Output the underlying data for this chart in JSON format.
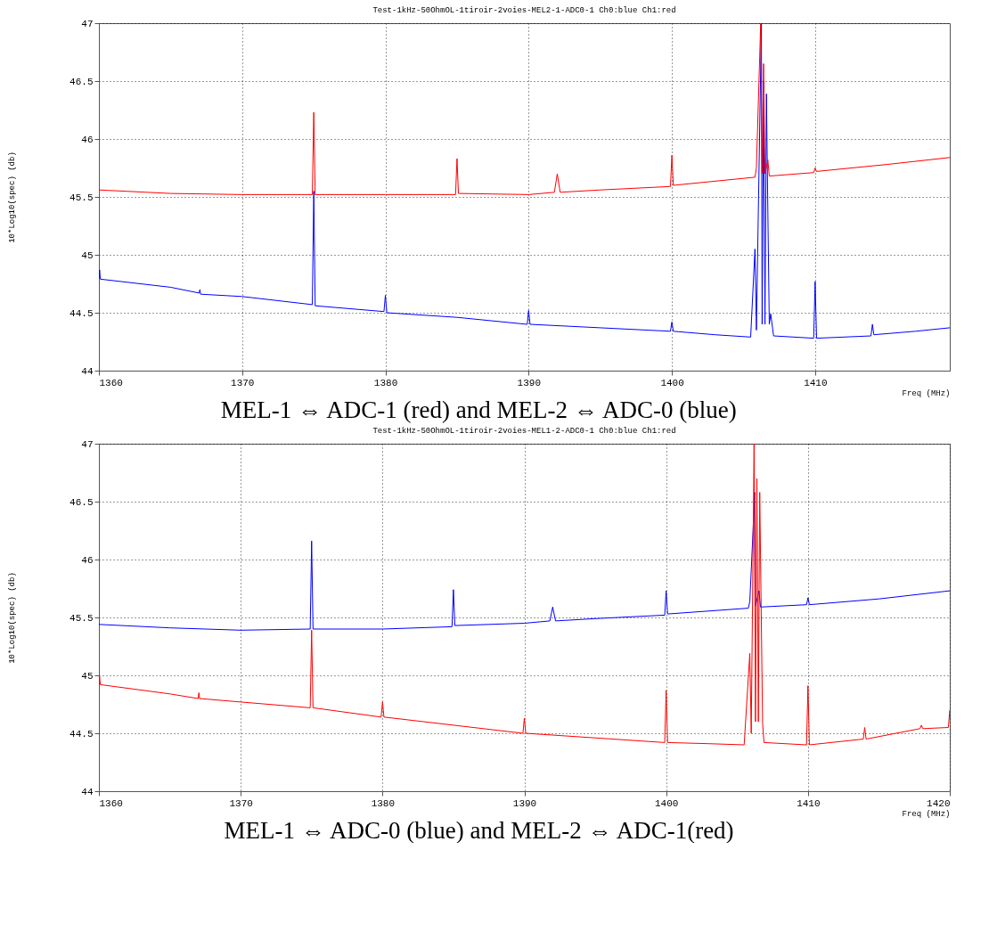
{
  "chart_data": [
    {
      "type": "line",
      "title": "Test-1kHz-50OhmOL-1tiroir-2voies-MEL2-1-ADC0-1  Ch0:blue Ch1:red",
      "xlabel": "Freq (MHz)",
      "ylabel": "10*Log10(spec) (db)",
      "annotations": [
        "MEL-1 ⇔ ADC-1 (red) and MEL-2 ⇔ ADC-0 (blue)"
      ],
      "xlim": [
        1360,
        1419.4
      ],
      "xticks": [
        1360,
        1370,
        1380,
        1390,
        1400,
        1410
      ],
      "ylim": [
        44,
        47
      ],
      "yticks": [
        44,
        44.5,
        45,
        45.5,
        46,
        46.5,
        47
      ],
      "grid": true,
      "line_style": "solid",
      "series": [
        {
          "color": "#0000ff",
          "x": [
            1360,
            1360.05,
            1360.1,
            1365,
            1367,
            1367.05,
            1367.1,
            1370,
            1374.9,
            1375,
            1375.1,
            1379.9,
            1380,
            1380.1,
            1385,
            1389.9,
            1390,
            1390.1,
            1395,
            1399.9,
            1400,
            1400.1,
            1403,
            1405.5,
            1405.8,
            1405.9,
            1406.25,
            1406.3,
            1406.4,
            1406.5,
            1406.6,
            1406.7,
            1406.8,
            1406.9,
            1407.1,
            1409.9,
            1410,
            1410.1,
            1413.9,
            1414,
            1414.1,
            1417,
            1419.4
          ],
          "values": [
            44.8,
            44.87,
            44.79,
            44.72,
            44.67,
            44.7,
            44.66,
            44.64,
            44.57,
            45.55,
            44.56,
            44.51,
            44.65,
            44.5,
            44.46,
            44.4,
            44.52,
            44.4,
            44.37,
            44.34,
            44.42,
            44.34,
            44.31,
            44.29,
            45.05,
            44.35,
            47.0,
            44.4,
            46.5,
            44.4,
            46.39,
            45.37,
            44.4,
            44.49,
            44.3,
            44.28,
            44.77,
            44.28,
            44.3,
            44.4,
            44.31,
            44.34,
            44.37
          ]
        },
        {
          "color": "#ff0000",
          "x": [
            1360,
            1365,
            1370,
            1374.9,
            1375,
            1375.1,
            1380,
            1384.9,
            1385,
            1385.1,
            1390,
            1391.8,
            1392,
            1392.2,
            1395,
            1399.9,
            1400,
            1400.1,
            1405.8,
            1405.9,
            1406.2,
            1406.3,
            1406.4,
            1406.5,
            1406.7,
            1406.8,
            1409.9,
            1410,
            1410.1,
            1415,
            1419.4
          ],
          "values": [
            45.56,
            45.53,
            45.52,
            45.52,
            46.23,
            45.52,
            45.52,
            45.52,
            45.83,
            45.53,
            45.52,
            45.54,
            45.7,
            45.54,
            45.56,
            45.59,
            45.86,
            45.6,
            45.67,
            45.75,
            47.0,
            45.7,
            46.65,
            45.7,
            45.82,
            45.68,
            45.71,
            45.75,
            45.72,
            45.78,
            45.84
          ]
        }
      ]
    },
    {
      "type": "line",
      "title": "Test-1kHz-50OhmOL-1tiroir-2voies-MEL1-2-ADC0-1  Ch0:blue Ch1:red",
      "xlabel": "Freq (MHz)",
      "ylabel": "10*Log10(spec) (db)",
      "annotations": [
        "MEL-1 ⇔ ADC-0 (blue) and MEL-2 ⇔ ADC-1(red)"
      ],
      "xlim": [
        1360,
        1420
      ],
      "xticks": [
        1360,
        1370,
        1380,
        1390,
        1400,
        1410,
        1420
      ],
      "ylim": [
        44,
        47
      ],
      "yticks": [
        44,
        44.5,
        45,
        45.5,
        46,
        46.5,
        47
      ],
      "grid": true,
      "line_style": "solid",
      "series": [
        {
          "color": "#0000ff",
          "x": [
            1360,
            1365,
            1370,
            1374.9,
            1375,
            1375.1,
            1380,
            1384.9,
            1385,
            1385.1,
            1390,
            1391.8,
            1392,
            1392.2,
            1395,
            1399.9,
            1400,
            1400.1,
            1405.8,
            1405.9,
            1406.25,
            1406.3,
            1406.55,
            1406.65,
            1409.9,
            1410,
            1410.1,
            1415,
            1420
          ],
          "values": [
            45.44,
            45.41,
            45.39,
            45.4,
            46.16,
            45.4,
            45.4,
            45.42,
            45.74,
            45.43,
            45.45,
            45.47,
            45.59,
            45.47,
            45.49,
            45.52,
            45.73,
            45.53,
            45.58,
            45.64,
            46.58,
            45.6,
            45.73,
            45.59,
            45.61,
            45.67,
            45.61,
            45.66,
            45.73
          ]
        },
        {
          "color": "#ff0000",
          "x": [
            1360,
            1360.05,
            1360.1,
            1365,
            1367,
            1367.05,
            1367.1,
            1370,
            1374.9,
            1375,
            1375.1,
            1379.9,
            1380,
            1380.1,
            1385,
            1389.9,
            1390,
            1390.1,
            1395,
            1399.9,
            1400,
            1400.1,
            1403,
            1405.5,
            1405.9,
            1406,
            1406.2,
            1406.3,
            1406.4,
            1406.5,
            1406.6,
            1406.8,
            1406.9,
            1409.9,
            1410,
            1410.1,
            1413.9,
            1414,
            1414.1,
            1417.9,
            1418,
            1418.1,
            1419.9,
            1420
          ],
          "values": [
            44.93,
            44.99,
            44.92,
            44.84,
            44.8,
            44.85,
            44.8,
            44.77,
            44.72,
            45.39,
            44.72,
            44.64,
            44.77,
            44.64,
            44.57,
            44.5,
            44.63,
            44.5,
            44.46,
            44.42,
            44.87,
            44.42,
            44.41,
            44.4,
            45.19,
            44.5,
            47.0,
            44.6,
            46.7,
            44.6,
            46.58,
            44.59,
            44.42,
            44.4,
            44.91,
            44.4,
            44.45,
            44.55,
            44.45,
            44.54,
            44.57,
            44.54,
            44.55,
            44.7
          ]
        }
      ]
    }
  ]
}
